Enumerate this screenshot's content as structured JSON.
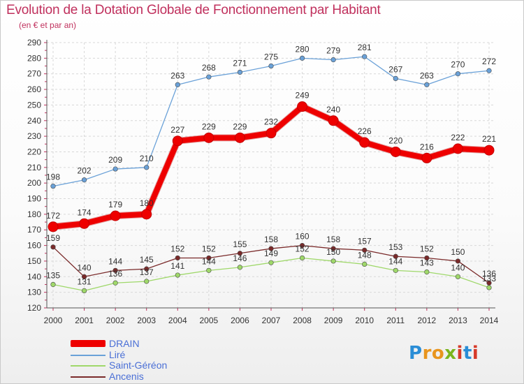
{
  "title": "Evolution de la Dotation Globale de Fonctionnement par Habitant",
  "subtitle": "(en € et par an)",
  "logo": {
    "text": "Proxiti",
    "colors": [
      "#2a8dd6",
      "#e8951e",
      "#e8951e",
      "#7ab51d",
      "#d63a2a",
      "#2a8dd6",
      "#d63a2a"
    ]
  },
  "chart_data": {
    "type": "line",
    "title": "Evolution de la Dotation Globale de Fonctionnement par Habitant",
    "subtitle": "(en € et par an)",
    "x": [
      "2000",
      "2001",
      "2002",
      "2003",
      "2004",
      "2005",
      "2006",
      "2007",
      "2008",
      "2009",
      "2010",
      "2011",
      "2012",
      "2013",
      "2014"
    ],
    "ylim": [
      120,
      290
    ],
    "yticks": [
      120,
      130,
      140,
      150,
      160,
      170,
      180,
      190,
      200,
      210,
      220,
      230,
      240,
      250,
      260,
      270,
      280,
      290
    ],
    "grid": true,
    "legend_position": "bottom-left",
    "series": [
      {
        "name": "DRAIN",
        "color": "#ee0000",
        "values": [
          172,
          174,
          179,
          180,
          227,
          229,
          229,
          232,
          249,
          240,
          226,
          220,
          216,
          222,
          221
        ]
      },
      {
        "name": "Liré",
        "color": "#6aa1d8",
        "values": [
          198,
          202,
          209,
          210,
          263,
          268,
          271,
          275,
          280,
          279,
          281,
          267,
          263,
          270,
          272
        ]
      },
      {
        "name": "Saint-Géréon",
        "color": "#9fd86a",
        "values": [
          135,
          131,
          136,
          137,
          141,
          144,
          146,
          149,
          152,
          150,
          148,
          144,
          143,
          140,
          133
        ]
      },
      {
        "name": "Ancenis",
        "color": "#7a2a2a",
        "values": [
          159,
          140,
          144,
          145,
          152,
          152,
          155,
          158,
          160,
          158,
          157,
          153,
          152,
          150,
          136
        ]
      }
    ]
  }
}
